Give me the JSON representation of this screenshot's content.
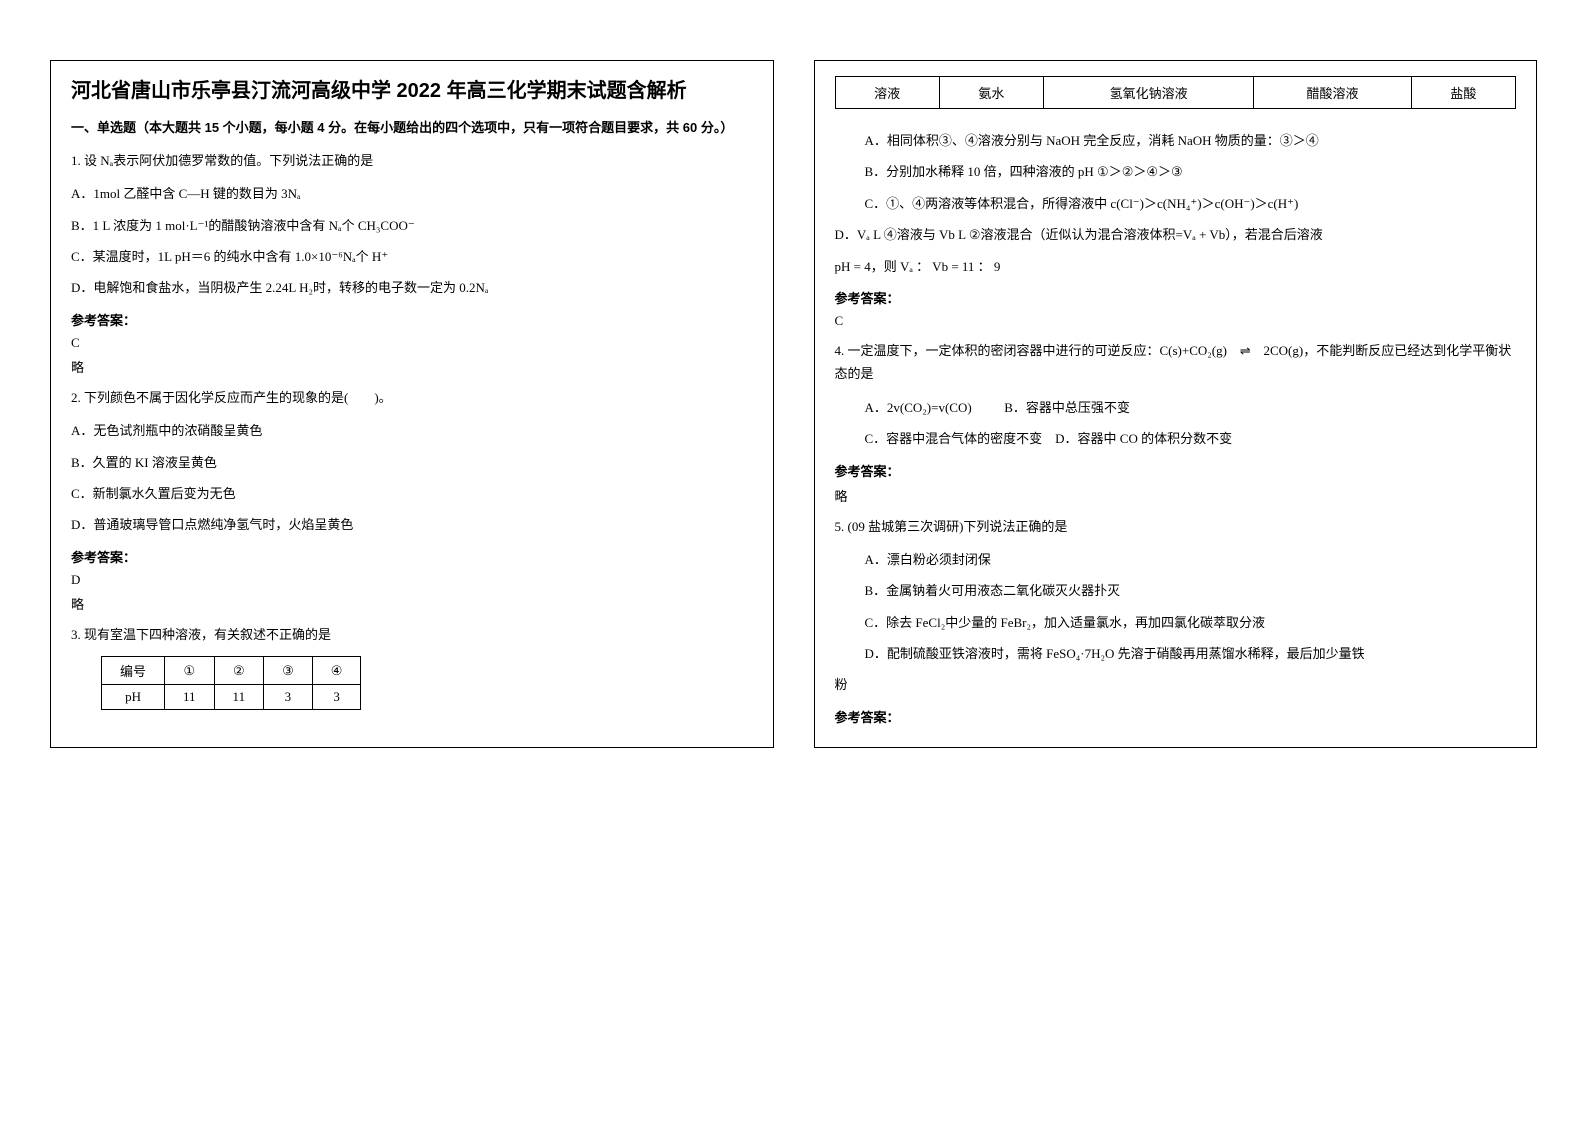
{
  "title": "河北省唐山市乐亭县汀流河高级中学 2022 年高三化学期末试题含解析",
  "section1_header": "一、单选题（本大题共 15 个小题，每小题 4 分。在每小题给出的四个选项中，只有一项符合题目要求，共 60 分。）",
  "q1": {
    "stem": "1. 设 Nₐ表示阿伏加德罗常数的值。下列说法正确的是",
    "A": "A．1mol 乙醛中含 C—H 键的数目为 3Nₐ",
    "B": "B．1 L 浓度为 1 mol·L⁻¹的醋酸钠溶液中含有 Nₐ个 CH₃COO⁻",
    "C": "C．某温度时，1L pH＝6 的纯水中含有 1.0×10⁻⁶Nₐ个 H⁺",
    "D": "D．电解饱和食盐水，当阴极产生 2.24L H₂时，转移的电子数一定为 0.2Nₐ",
    "answer_label": "参考答案：",
    "answer": "C",
    "note": "略"
  },
  "q2": {
    "stem": "2. 下列颜色不属于因化学反应而产生的现象的是(　　)。",
    "A": "A．无色试剂瓶中的浓硝酸呈黄色",
    "B": "B．久置的 KI 溶液呈黄色",
    "C": "C．新制氯水久置后变为无色",
    "D": "D．普通玻璃导管口点燃纯净氢气时，火焰呈黄色",
    "answer_label": "参考答案：",
    "answer": "D",
    "note": "略"
  },
  "q3": {
    "stem": "3. 现有室温下四种溶液，有关叙述不正确的是",
    "table": {
      "headers": [
        "编号",
        "①",
        "②",
        "③",
        "④"
      ],
      "row_ph": [
        "pH",
        "11",
        "11",
        "3",
        "3"
      ]
    }
  },
  "right_top_table": {
    "headers": [
      "溶液",
      "氨水",
      "氢氧化钠溶液",
      "醋酸溶液",
      "盐酸"
    ]
  },
  "q3_options": {
    "A": "A．相同体积③、④溶液分别与 NaOH 完全反应，消耗 NaOH 物质的量：③＞④",
    "B": "B．分别加水稀释 10 倍，四种溶液的 pH ①＞②＞④＞③",
    "C": "C．①、④两溶液等体积混合，所得溶液中 c(Cl⁻)＞c(NH₄⁺)＞c(OH⁻)＞c(H⁺)",
    "D_line1": "D．Vₐ L ④溶液与 Vb L ②溶液混合（近似认为混合溶液体积=Vₐ + Vb），若混合后溶液",
    "D_line2": "pH = 4，则 Vₐ ： Vb = 11 ： 9",
    "answer_label": "参考答案：",
    "answer": "C"
  },
  "q4": {
    "stem_part1": "4. 一定温度下，一定体积的密闭容器中进行的可逆反应：C(s)+CO₂(g)",
    "stem_part2": "2CO(g)，不能判断反应已经达到化学平衡状态的是",
    "A": "A．2v(CO₂)=v(CO)",
    "B": "B．容器中总压强不变",
    "C": "C．容器中混合气体的密度不变",
    "D": "D．容器中 CO 的体积分数不变",
    "answer_label": "参考答案：",
    "note": "略"
  },
  "q5": {
    "stem": "5. (09 盐城第三次调研)下列说法正确的是",
    "A": "A．漂白粉必须封闭保",
    "B": "B．金属钠着火可用液态二氧化碳灭火器扑灭",
    "C": "C．除去 FeCl₂中少量的 FeBr₂，加入适量氯水，再加四氯化碳萃取分液",
    "D_line1": "D．配制硫酸亚铁溶液时，需将 FeSO₄·7H₂O 先溶于硝酸再用蒸馏水稀释，最后加少量铁",
    "D_line2": "粉",
    "answer_label": "参考答案："
  }
}
